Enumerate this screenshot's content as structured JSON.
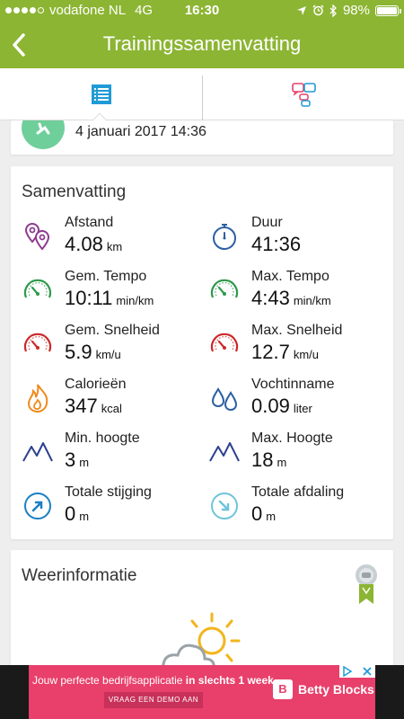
{
  "status_bar": {
    "carrier": "vodafone NL",
    "network": "4G",
    "time": "16:30",
    "battery": "98%",
    "battery_level": 0.98
  },
  "navbar": {
    "title": "Trainingssamenvatting",
    "back_icon": "chevron-left-icon"
  },
  "tabs": [
    {
      "name": "summary",
      "icon": "list-icon",
      "active": true
    },
    {
      "name": "chat",
      "icon": "chat-bubbles-icon",
      "active": false
    }
  ],
  "session": {
    "date": "4 januari 2017 14:36"
  },
  "summary": {
    "title": "Samenvatting",
    "metrics": [
      {
        "label": "Afstand",
        "value": "4.08",
        "unit": "km",
        "icon": "location-pins-icon",
        "color": "#8e3a8f"
      },
      {
        "label": "Duur",
        "value": "41:36",
        "unit": "",
        "icon": "stopwatch-icon",
        "color": "#2c5fa3"
      },
      {
        "label": "Gem. Tempo",
        "value": "10:11",
        "unit": "min/km",
        "icon": "speedometer-icon",
        "color": "#2e9a4b"
      },
      {
        "label": "Max. Tempo",
        "value": "4:43",
        "unit": "min/km",
        "icon": "speedometer-icon",
        "color": "#2e9a4b"
      },
      {
        "label": "Gem. Snelheid",
        "value": "5.9",
        "unit": "km/u",
        "icon": "speedometer-icon",
        "color": "#cc2b2b"
      },
      {
        "label": "Max. Snelheid",
        "value": "12.7",
        "unit": "km/u",
        "icon": "speedometer-icon",
        "color": "#cc2b2b"
      },
      {
        "label": "Calorieën",
        "value": "347",
        "unit": "kcal",
        "icon": "flame-icon",
        "color": "#f08a1c"
      },
      {
        "label": "Vochtinname",
        "value": "0.09",
        "unit": "liter",
        "icon": "water-drops-icon",
        "color": "#2c5fa3"
      },
      {
        "label": "Min. hoogte",
        "value": "3",
        "unit": "m",
        "icon": "mountain-icon",
        "color": "#2c3f8f"
      },
      {
        "label": "Max. Hoogte",
        "value": "18",
        "unit": "m",
        "icon": "mountain-icon",
        "color": "#2c3f8f"
      },
      {
        "label": "Totale stijging",
        "value": "0",
        "unit": "m",
        "icon": "arrow-up-right-icon",
        "color": "#1b7fc4"
      },
      {
        "label": "Totale afdaling",
        "value": "0",
        "unit": "m",
        "icon": "arrow-down-right-icon",
        "color": "#6fc4d9"
      }
    ]
  },
  "weather": {
    "title": "Weerinformatie",
    "icon": "partly-cloudy-icon",
    "badge_icon": "award-badge-icon"
  },
  "ad": {
    "text_start": "Jouw perfecte bedrijfsapplicatie",
    "text_bold": " in slechts 1 week.",
    "cta": "VRAAG EEN DEMO AAN",
    "logo_letter": "B",
    "logo_text": "Betty Blocks"
  },
  "colors": {
    "brand_green": "#8cb533",
    "tab_blue": "#1f9bd6",
    "ad_pink": "#e8406b"
  }
}
